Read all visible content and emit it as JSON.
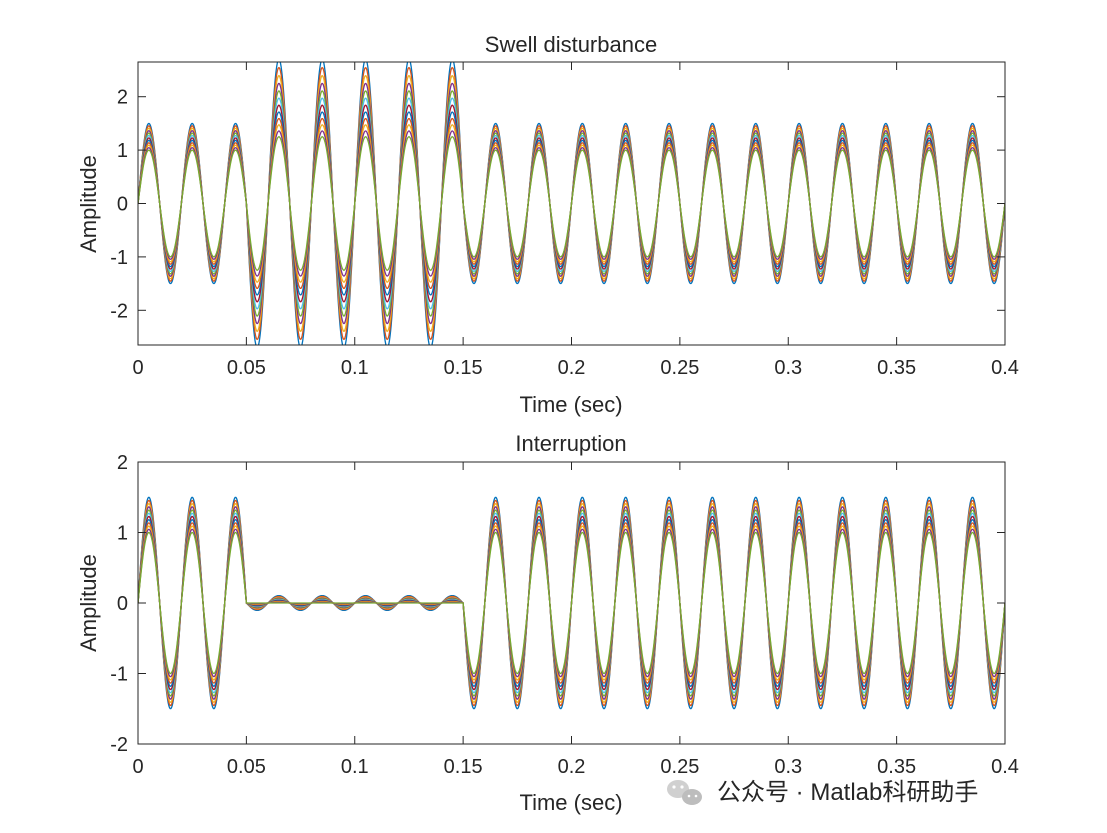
{
  "chart_data": [
    {
      "type": "line",
      "title": "Swell disturbance",
      "xlabel": "Time (sec)",
      "ylabel": "Amplitude",
      "xlim": [
        0,
        0.4
      ],
      "ylim": [
        -2.65,
        2.65
      ],
      "xticks": [
        0,
        0.05,
        0.1,
        0.15,
        0.2,
        0.25,
        0.3,
        0.35,
        0.4
      ],
      "xtick_labels": [
        "0",
        "0.05",
        "0.1",
        "0.15",
        "0.2",
        "0.25",
        "0.3",
        "0.35",
        "0.4"
      ],
      "yticks": [
        -2,
        -1,
        0,
        1,
        2
      ],
      "ytick_labels": [
        "-2",
        "-1",
        "0",
        "1",
        "2"
      ],
      "signal": {
        "waveform": "sine",
        "frequency_hz": 50,
        "amplitude_min": 1.0,
        "amplitude_max": 1.5,
        "disturbance": "swell",
        "disturbance_start_sec": 0.05,
        "disturbance_end_sec": 0.15,
        "disturbance_factor_min": 1.25,
        "disturbance_factor_max": 1.8
      },
      "series_count": 12,
      "series_colors": [
        "#0072BD",
        "#D95319",
        "#EDB120",
        "#7E2F8E",
        "#77AC30",
        "#4DBEEE",
        "#A2142F",
        "#0072BD",
        "#D95319",
        "#EDB120",
        "#7E2F8E",
        "#77AC30"
      ]
    },
    {
      "type": "line",
      "title": "Interruption",
      "xlabel": "Time (sec)",
      "ylabel": "Amplitude",
      "xlim": [
        0,
        0.4
      ],
      "ylim": [
        -2,
        2
      ],
      "xticks": [
        0,
        0.05,
        0.1,
        0.15,
        0.2,
        0.25,
        0.3,
        0.35,
        0.4
      ],
      "xtick_labels": [
        "0",
        "0.05",
        "0.1",
        "0.15",
        "0.2",
        "0.25",
        "0.3",
        "0.35",
        "0.4"
      ],
      "yticks": [
        -2,
        -1,
        0,
        1,
        2
      ],
      "ytick_labels": [
        "-2",
        "-1",
        "0",
        "1",
        "2"
      ],
      "signal": {
        "waveform": "sine",
        "frequency_hz": 50,
        "amplitude_min": 1.0,
        "amplitude_max": 1.5,
        "disturbance": "interruption",
        "disturbance_start_sec": 0.05,
        "disturbance_end_sec": 0.15,
        "disturbance_factor_min": 0.0,
        "disturbance_factor_max": 0.07
      },
      "series_count": 12,
      "series_colors": [
        "#0072BD",
        "#D95319",
        "#EDB120",
        "#7E2F8E",
        "#77AC30",
        "#4DBEEE",
        "#A2142F",
        "#0072BD",
        "#D95319",
        "#EDB120",
        "#7E2F8E",
        "#77AC30"
      ]
    }
  ],
  "watermark": {
    "text": "公众号 · Matlab科研助手",
    "icon": "wechat-icon"
  }
}
